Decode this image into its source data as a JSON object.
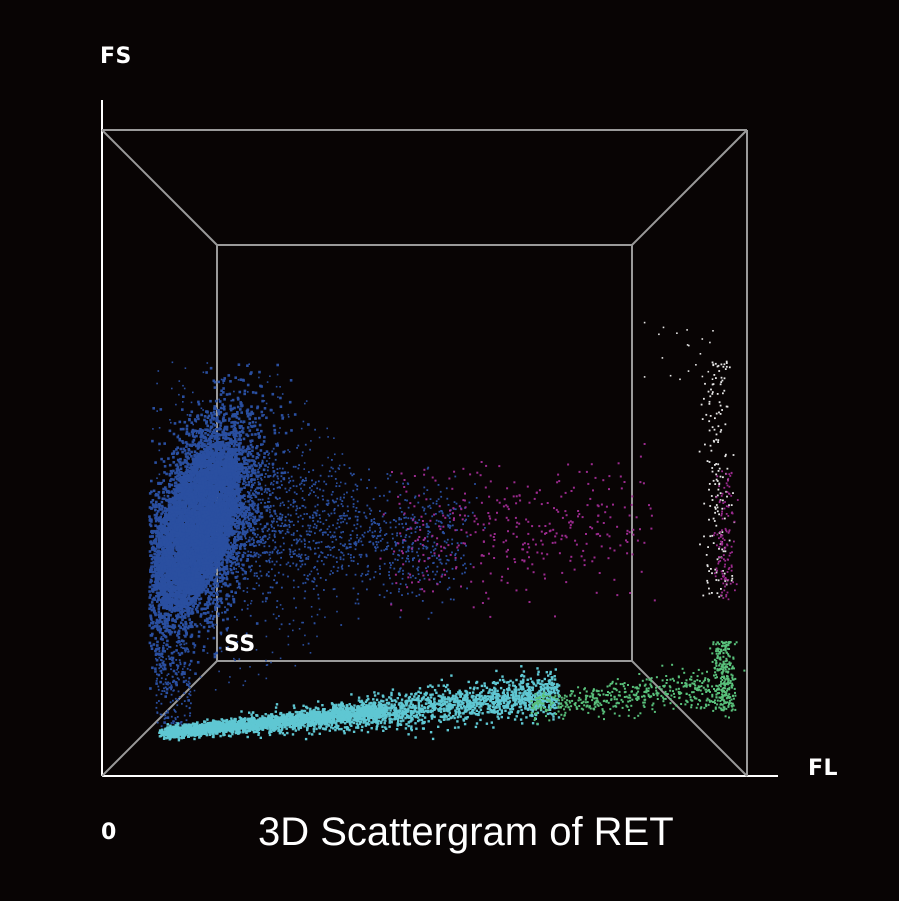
{
  "chart_data": {
    "type": "scatter",
    "title": "3D Scattergram of RET",
    "axes": {
      "x": "FL",
      "y": "FS",
      "z": "SS",
      "origin_label": "0"
    },
    "grid": false,
    "legend": "none",
    "colors": {
      "background": "#080404",
      "frame": "#9a9a9a",
      "blue": "#2a4fa0",
      "cyan": "#5fc7d3",
      "green": "#59c07b",
      "magenta": "#9b2a8e",
      "white": "#e6e6e6"
    },
    "clusters": [
      {
        "color": "blue",
        "note": "dense population near low FL, mid FS"
      },
      {
        "color": "blue",
        "note": "scatter trailing toward higher FL"
      },
      {
        "color": "magenta",
        "note": "sparse points at mid to high FL"
      },
      {
        "color": "cyan",
        "note": "band along low FS from low to mid FL"
      },
      {
        "color": "green",
        "note": "band along low FS at high FL"
      },
      {
        "color": "white",
        "note": "vertical column at highest FL"
      }
    ]
  }
}
